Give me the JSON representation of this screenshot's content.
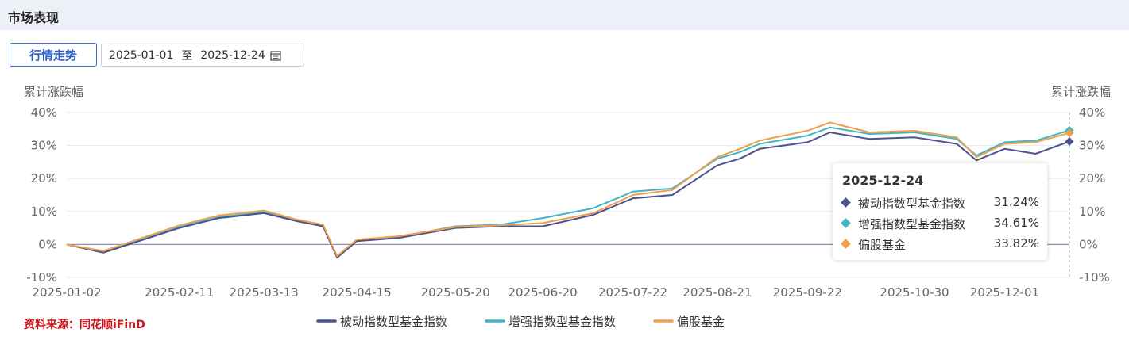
{
  "header": {
    "title": "市场表现"
  },
  "controls": {
    "tab_label": "行情走势",
    "date_start": "2025-01-01",
    "date_sep": "至",
    "date_end": "2025-12-24"
  },
  "source_note": "资料来源：同花顺iFinD",
  "tooltip": {
    "date": "2025-12-24",
    "rows": [
      {
        "name": "被动指数型基金指数",
        "value": "31.24%"
      },
      {
        "name": "增强指数型基金指数",
        "value": "34.61%"
      },
      {
        "name": "偏股基金",
        "value": "33.82%"
      }
    ]
  },
  "colors": {
    "passive": "#4a5390",
    "enhanced": "#3fb6c6",
    "equity": "#f0a04b",
    "zero_line": "#8a8fb3",
    "grid": "#e6e8ee",
    "accent": "#2b5fc8",
    "source_red": "#d0131a"
  },
  "chart_data": {
    "type": "line",
    "ylabel_left": "累计涨跌幅",
    "ylabel_right": "累计涨跌幅",
    "ylim": [
      -10,
      40
    ],
    "yticks": [
      "40%",
      "30%",
      "20%",
      "10%",
      "0%",
      "-10%"
    ],
    "grid": true,
    "legend_position": "bottom",
    "x_tick_labels": [
      "2025-01-02",
      "2025-02-11",
      "2025-03-13",
      "2025-04-15",
      "2025-05-20",
      "2025-06-20",
      "2025-07-22",
      "2025-08-21",
      "2025-09-22",
      "2025-10-30",
      "2025-12-01"
    ],
    "x": [
      "2025-01-02",
      "2025-01-15",
      "2025-02-11",
      "2025-02-25",
      "2025-03-13",
      "2025-03-25",
      "2025-04-03",
      "2025-04-08",
      "2025-04-15",
      "2025-04-30",
      "2025-05-20",
      "2025-06-05",
      "2025-06-20",
      "2025-07-08",
      "2025-07-22",
      "2025-08-05",
      "2025-08-21",
      "2025-08-29",
      "2025-09-05",
      "2025-09-22",
      "2025-09-30",
      "2025-10-14",
      "2025-10-30",
      "2025-11-14",
      "2025-11-21",
      "2025-12-01",
      "2025-12-12",
      "2025-12-24"
    ],
    "series": [
      {
        "name": "被动指数型基金指数",
        "values": [
          0,
          -2.5,
          5,
          8,
          9.5,
          7,
          5.5,
          -4,
          1,
          2,
          5,
          5.5,
          5.5,
          9,
          14,
          15,
          24,
          26,
          29,
          31,
          34,
          32,
          32.5,
          30.5,
          25.5,
          29,
          27.5,
          31.24
        ]
      },
      {
        "name": "增强指数型基金指数",
        "values": [
          0,
          -2.3,
          5.3,
          8.3,
          9.8,
          7.2,
          5.8,
          -3.8,
          1.2,
          2.3,
          5.5,
          6,
          8,
          11,
          16,
          17,
          26,
          28,
          30.5,
          33,
          35.5,
          33.5,
          34,
          32,
          27,
          31,
          31.5,
          34.61
        ]
      },
      {
        "name": "偏股基金",
        "values": [
          0,
          -2,
          5.8,
          8.8,
          10.3,
          7.5,
          6,
          -3.5,
          1.5,
          2.5,
          5.3,
          5.8,
          6.5,
          9.5,
          15,
          16.5,
          26.5,
          29,
          31.5,
          34.5,
          37,
          34,
          34.5,
          32.5,
          26.5,
          30.5,
          31,
          33.82
        ]
      }
    ]
  }
}
